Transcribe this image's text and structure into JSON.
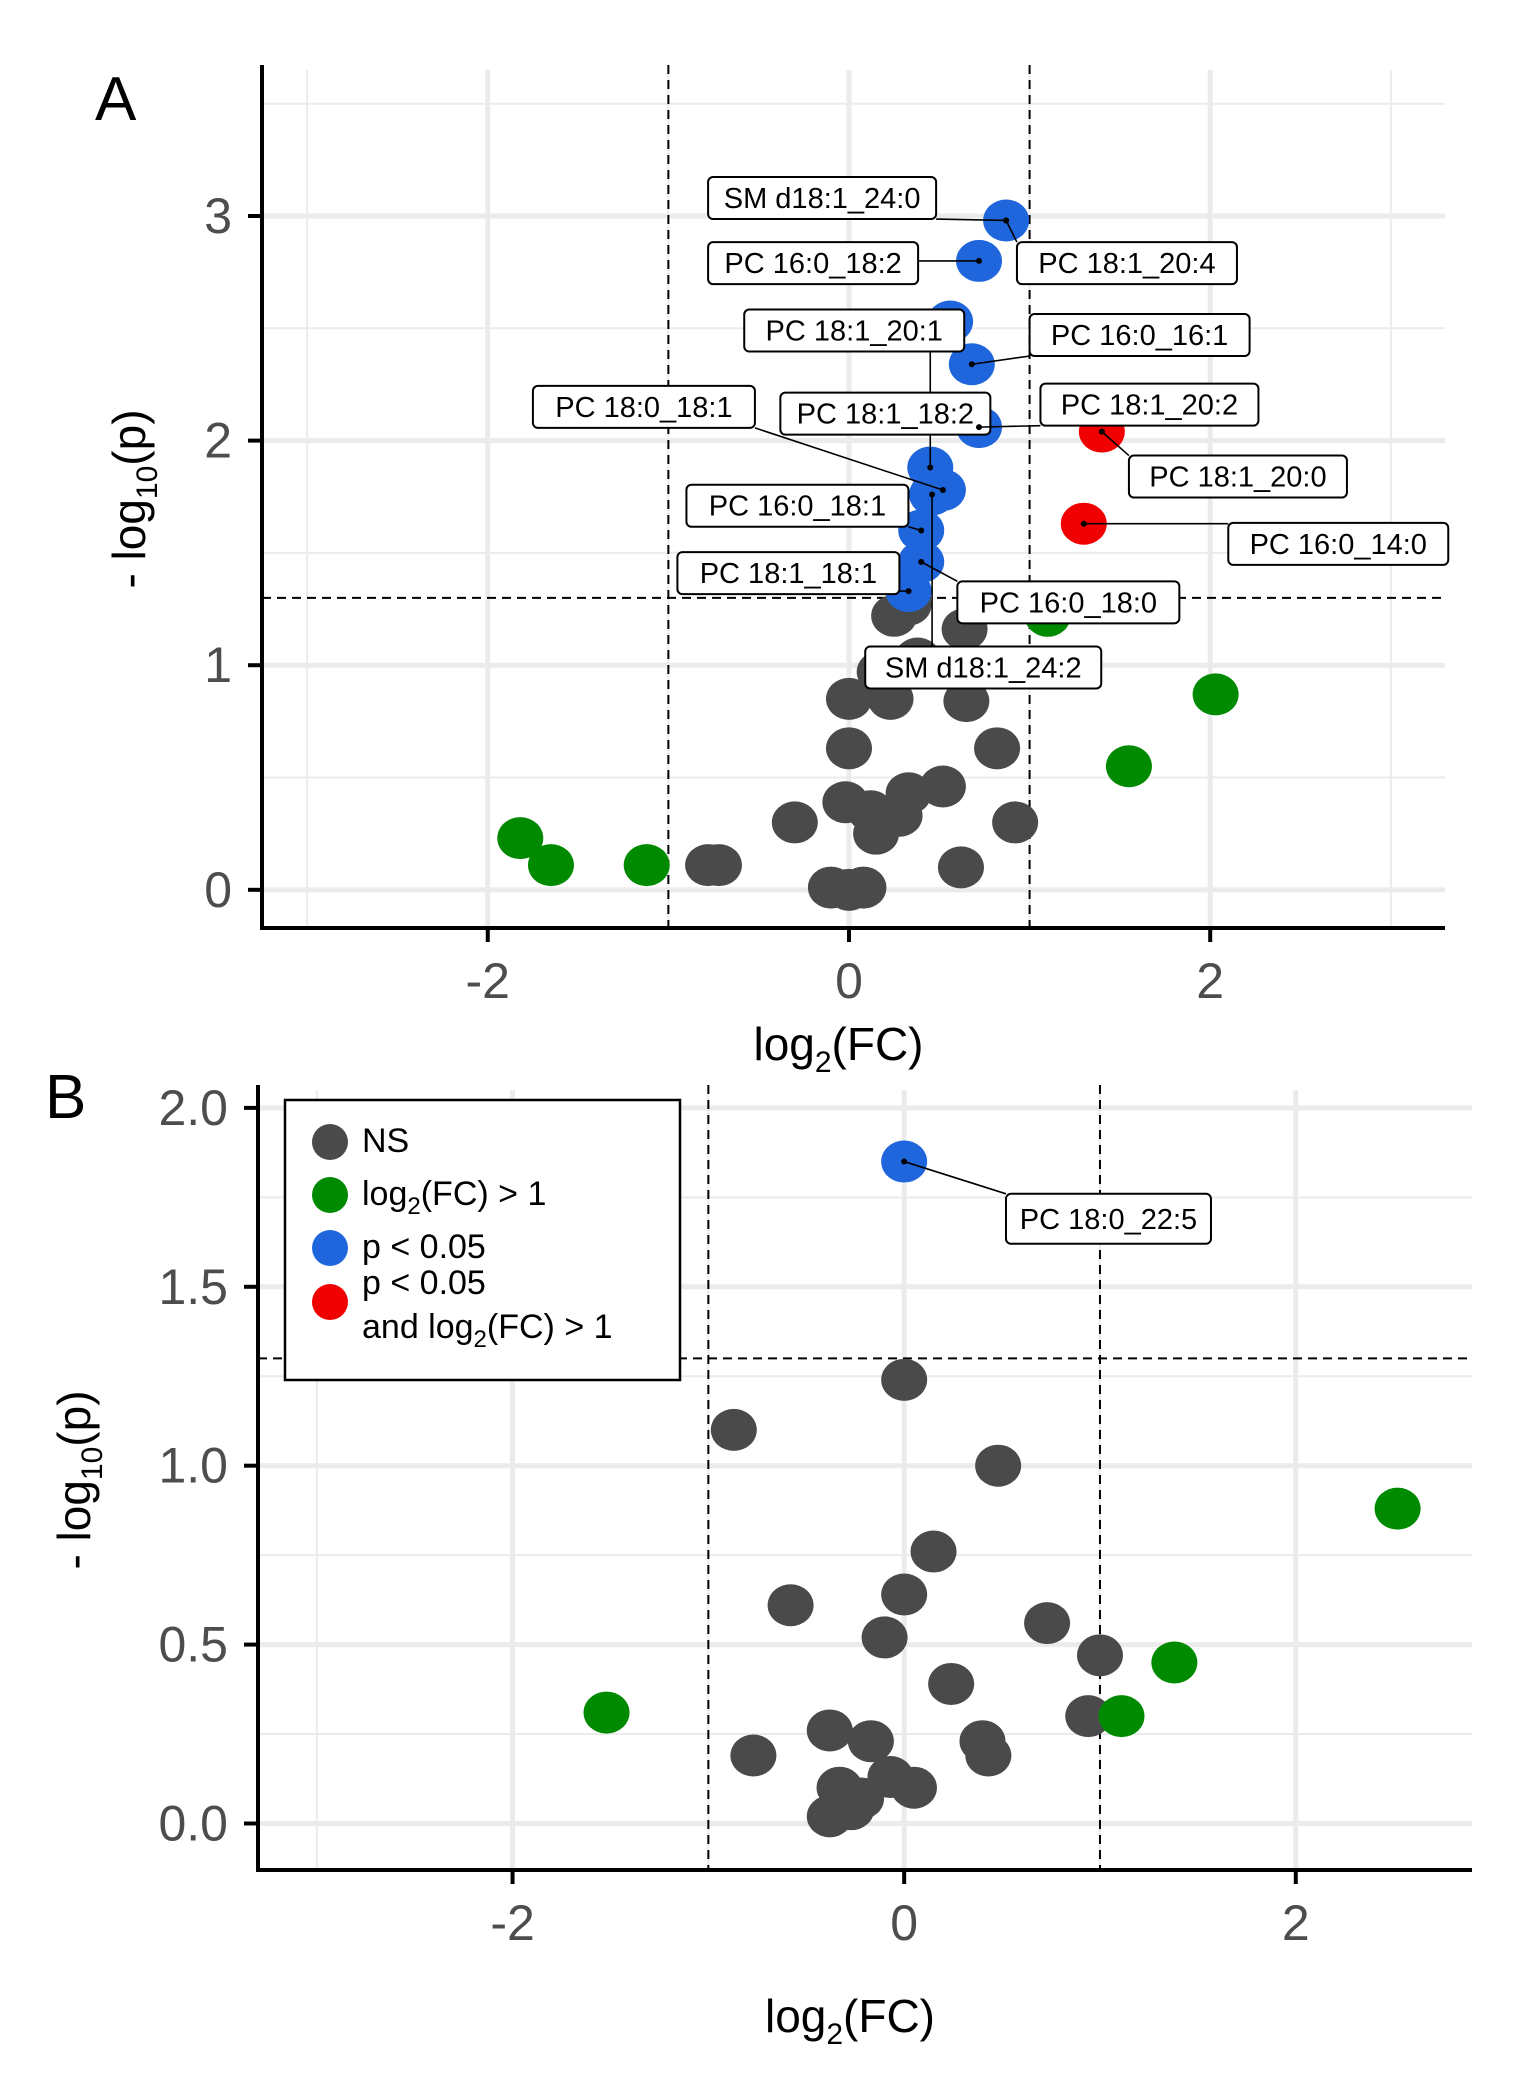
{
  "colors": {
    "NS": "#4a4a4a",
    "fc": "#008a00",
    "p": "#1f66dd",
    "both": "#f00000",
    "grid": "#ebebeb"
  },
  "legend": {
    "items": [
      {
        "key": "NS",
        "label": "NS"
      },
      {
        "key": "fc",
        "label": "log2(FC) > 1",
        "pre": "log",
        "sub": "2",
        "post": "(FC) > 1"
      },
      {
        "key": "p",
        "label": "p < 0.05"
      },
      {
        "key": "both",
        "label": "p < 0.05 and log2(FC) > 1",
        "line1": "p < 0.05",
        "line2_pre": "and log",
        "line2_sub": "2",
        "line2_post": "(FC) > 1"
      }
    ]
  },
  "chart_data": [
    {
      "panel": "A",
      "type": "scatter",
      "title": "A",
      "xlabel": "log2(FC)",
      "ylabel": "- log10(p)",
      "xlim": [
        -3.25,
        3.3
      ],
      "ylim": [
        -0.17,
        3.65
      ],
      "xticks": [
        -2,
        0,
        2
      ],
      "yticks": [
        0,
        1,
        2,
        3
      ],
      "vlines": [
        -1,
        1
      ],
      "hline": 1.3,
      "points": [
        {
          "x": -1.82,
          "y": 0.23,
          "g": "fc"
        },
        {
          "x": -1.65,
          "y": 0.11,
          "g": "fc"
        },
        {
          "x": -1.12,
          "y": 0.11,
          "g": "fc"
        },
        {
          "x": -0.78,
          "y": 0.11,
          "g": "NS"
        },
        {
          "x": -0.72,
          "y": 0.11,
          "g": "NS"
        },
        {
          "x": -0.3,
          "y": 0.3,
          "g": "NS"
        },
        {
          "x": -0.1,
          "y": 0.01,
          "g": "NS"
        },
        {
          "x": 0.0,
          "y": 0.0,
          "g": "NS"
        },
        {
          "x": 0.08,
          "y": 0.01,
          "g": "NS"
        },
        {
          "x": -0.02,
          "y": 0.39,
          "g": "NS"
        },
        {
          "x": 0.12,
          "y": 0.35,
          "g": "NS"
        },
        {
          "x": 0.15,
          "y": 0.25,
          "g": "NS"
        },
        {
          "x": 0.28,
          "y": 0.33,
          "g": "NS"
        },
        {
          "x": 0.33,
          "y": 0.43,
          "g": "NS"
        },
        {
          "x": 0.52,
          "y": 0.46,
          "g": "NS"
        },
        {
          "x": 0.62,
          "y": 0.1,
          "g": "NS"
        },
        {
          "x": 0.92,
          "y": 0.3,
          "g": "NS"
        },
        {
          "x": 0.0,
          "y": 0.63,
          "g": "NS"
        },
        {
          "x": 0.82,
          "y": 0.63,
          "g": "NS"
        },
        {
          "x": 0.0,
          "y": 0.85,
          "g": "NS"
        },
        {
          "x": 0.23,
          "y": 0.85,
          "g": "NS"
        },
        {
          "x": 0.65,
          "y": 0.84,
          "g": "NS"
        },
        {
          "x": 0.17,
          "y": 0.97,
          "g": "NS"
        },
        {
          "x": 0.38,
          "y": 1.03,
          "g": "NS"
        },
        {
          "x": 0.25,
          "y": 1.22,
          "g": "NS"
        },
        {
          "x": 0.33,
          "y": 1.27,
          "g": "NS"
        },
        {
          "x": 0.64,
          "y": 1.16,
          "g": "NS"
        },
        {
          "x": 1.1,
          "y": 1.22,
          "g": "fc"
        },
        {
          "x": 2.03,
          "y": 0.87,
          "g": "fc"
        },
        {
          "x": 1.55,
          "y": 0.55,
          "g": "fc"
        },
        {
          "x": 0.33,
          "y": 1.33,
          "g": "p"
        },
        {
          "x": 0.4,
          "y": 1.46,
          "g": "p"
        },
        {
          "x": 0.4,
          "y": 1.6,
          "g": "p"
        },
        {
          "x": 0.46,
          "y": 1.76,
          "g": "p"
        },
        {
          "x": 0.52,
          "y": 1.78,
          "g": "p"
        },
        {
          "x": 0.45,
          "y": 1.88,
          "g": "p"
        },
        {
          "x": 0.72,
          "y": 2.06,
          "g": "p"
        },
        {
          "x": 0.68,
          "y": 2.34,
          "g": "p"
        },
        {
          "x": 0.56,
          "y": 2.53,
          "g": "p"
        },
        {
          "x": 0.72,
          "y": 2.8,
          "g": "p"
        },
        {
          "x": 0.87,
          "y": 2.98,
          "g": "p"
        },
        {
          "x": 1.4,
          "y": 2.04,
          "g": "both"
        },
        {
          "x": 1.3,
          "y": 1.63,
          "g": "both"
        }
      ],
      "annotations": [
        {
          "label": "SM d18:1_24:0",
          "tx": -0.78,
          "ty": 3.08,
          "px": 0.87,
          "py": 2.98
        },
        {
          "label": "PC 16:0_18:2",
          "tx": -0.78,
          "ty": 2.79,
          "px": 0.72,
          "py": 2.8
        },
        {
          "label": "PC 18:1_20:4",
          "tx": 0.93,
          "ty": 2.79,
          "px": 0.87,
          "py": 2.98
        },
        {
          "label": "PC 18:1_20:1",
          "tx": -0.58,
          "ty": 2.49,
          "px": 0.45,
          "py": 1.88
        },
        {
          "label": "PC 16:0_16:1",
          "tx": 1.0,
          "ty": 2.47,
          "px": 0.68,
          "py": 2.34
        },
        {
          "label": "PC 18:0_18:1",
          "tx": -1.75,
          "ty": 2.15,
          "px": 0.52,
          "py": 1.78
        },
        {
          "label": "PC 18:1_18:2",
          "tx": -0.38,
          "ty": 2.12,
          "px": 0.72,
          "py": 2.06
        },
        {
          "label": "PC 18:1_20:2",
          "tx": 1.06,
          "ty": 2.16,
          "px": 0.72,
          "py": 2.06
        },
        {
          "label": "PC 18:1_20:0",
          "tx": 1.55,
          "ty": 1.84,
          "px": 1.4,
          "py": 2.04
        },
        {
          "label": "PC 16:0_18:1",
          "tx": -0.9,
          "ty": 1.71,
          "px": 0.4,
          "py": 1.6
        },
        {
          "label": "PC 16:0_14:0",
          "tx": 2.1,
          "ty": 1.54,
          "px": 1.3,
          "py": 1.63
        },
        {
          "label": "PC 18:1_18:1",
          "tx": -0.95,
          "ty": 1.41,
          "px": 0.33,
          "py": 1.33
        },
        {
          "label": "PC 16:0_18:0",
          "tx": 0.6,
          "ty": 1.28,
          "px": 0.4,
          "py": 1.46
        },
        {
          "label": "SM d18:1_24:2",
          "tx": 0.09,
          "ty": 0.99,
          "px": 0.46,
          "py": 1.76
        }
      ]
    },
    {
      "panel": "B",
      "type": "scatter",
      "title": "B",
      "xlabel": "log2(FC)",
      "ylabel": "- log10(p)",
      "xlim": [
        -3.3,
        2.9
      ],
      "ylim": [
        -0.13,
        2.05
      ],
      "xticks": [
        -2,
        0,
        2
      ],
      "yticks": [
        0.0,
        0.5,
        1.0,
        1.5,
        2.0
      ],
      "ytick_labels": [
        "0.0",
        "0.5",
        "1.0",
        "1.5",
        "2.0"
      ],
      "vlines": [
        -1,
        1
      ],
      "hline": 1.3,
      "points": [
        {
          "x": -1.52,
          "y": 0.31,
          "g": "fc"
        },
        {
          "x": -0.77,
          "y": 0.19,
          "g": "NS"
        },
        {
          "x": -0.58,
          "y": 0.61,
          "g": "NS"
        },
        {
          "x": -0.38,
          "y": 0.26,
          "g": "NS"
        },
        {
          "x": -0.38,
          "y": 0.02,
          "g": "NS"
        },
        {
          "x": -0.33,
          "y": 0.1,
          "g": "NS"
        },
        {
          "x": -0.27,
          "y": 0.04,
          "g": "NS"
        },
        {
          "x": -0.22,
          "y": 0.07,
          "g": "NS"
        },
        {
          "x": -0.17,
          "y": 0.23,
          "g": "NS"
        },
        {
          "x": -0.1,
          "y": 0.52,
          "g": "NS"
        },
        {
          "x": 0.0,
          "y": 0.64,
          "g": "NS"
        },
        {
          "x": -0.07,
          "y": 0.13,
          "g": "NS"
        },
        {
          "x": 0.05,
          "y": 0.1,
          "g": "NS"
        },
        {
          "x": 0.15,
          "y": 0.76,
          "g": "NS"
        },
        {
          "x": 0.24,
          "y": 0.39,
          "g": "NS"
        },
        {
          "x": 0.4,
          "y": 0.23,
          "g": "NS"
        },
        {
          "x": 0.43,
          "y": 0.19,
          "g": "NS"
        },
        {
          "x": 0.48,
          "y": 1.0,
          "g": "NS"
        },
        {
          "x": 0.73,
          "y": 0.56,
          "g": "NS"
        },
        {
          "x": 0.94,
          "y": 0.3,
          "g": "NS"
        },
        {
          "x": 1.0,
          "y": 0.47,
          "g": "NS"
        },
        {
          "x": 1.11,
          "y": 0.3,
          "g": "fc"
        },
        {
          "x": 1.38,
          "y": 0.45,
          "g": "fc"
        },
        {
          "x": 2.52,
          "y": 0.88,
          "g": "fc"
        },
        {
          "x": -0.87,
          "y": 1.1,
          "g": "NS"
        },
        {
          "x": 0.0,
          "y": 1.24,
          "g": "NS"
        },
        {
          "x": 0.0,
          "y": 1.85,
          "g": "p"
        }
      ],
      "annotations": [
        {
          "label": "PC 18:0_22:5",
          "tx": 0.52,
          "ty": 1.69,
          "px": 0.0,
          "py": 1.85
        }
      ]
    }
  ]
}
